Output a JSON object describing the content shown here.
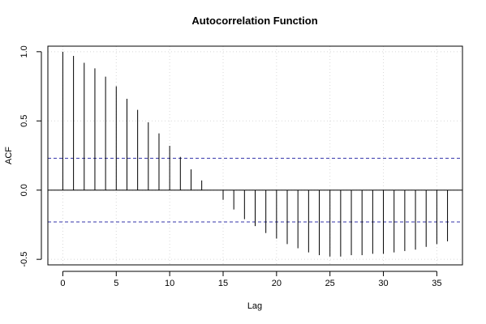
{
  "chart_data": {
    "type": "bar",
    "title": "Autocorrelation Function",
    "xlabel": "Lag",
    "ylabel": "ACF",
    "xlim": [
      -1.4,
      37.4
    ],
    "ylim": [
      -0.54,
      1.04
    ],
    "x_ticks": [
      0,
      5,
      10,
      15,
      20,
      25,
      30,
      35
    ],
    "y_ticks": [
      -0.5,
      0.0,
      0.5,
      1.0
    ],
    "y_tick_labels": [
      "-0.5",
      "0.0",
      "0.5",
      "1.0"
    ],
    "grid": true,
    "lags": [
      0,
      1,
      2,
      3,
      4,
      5,
      6,
      7,
      8,
      9,
      10,
      11,
      12,
      13,
      14,
      15,
      16,
      17,
      18,
      19,
      20,
      21,
      22,
      23,
      24,
      25,
      26,
      27,
      28,
      29,
      30,
      31,
      32,
      33,
      34,
      35,
      36
    ],
    "values": [
      1.0,
      0.97,
      0.92,
      0.88,
      0.82,
      0.75,
      0.66,
      0.58,
      0.49,
      0.41,
      0.32,
      0.24,
      0.15,
      0.07,
      0.0,
      -0.07,
      -0.14,
      -0.21,
      -0.26,
      -0.31,
      -0.35,
      -0.39,
      -0.42,
      -0.45,
      -0.47,
      -0.48,
      -0.48,
      -0.47,
      -0.47,
      -0.46,
      -0.46,
      -0.45,
      -0.44,
      -0.43,
      -0.41,
      -0.39,
      -0.37
    ],
    "confidence_bounds": [
      0.23,
      -0.23
    ],
    "colors": {
      "bars": "#000000",
      "confidence": "#3333aa",
      "grid": "#d8d8d8",
      "frame": "#000000"
    }
  }
}
